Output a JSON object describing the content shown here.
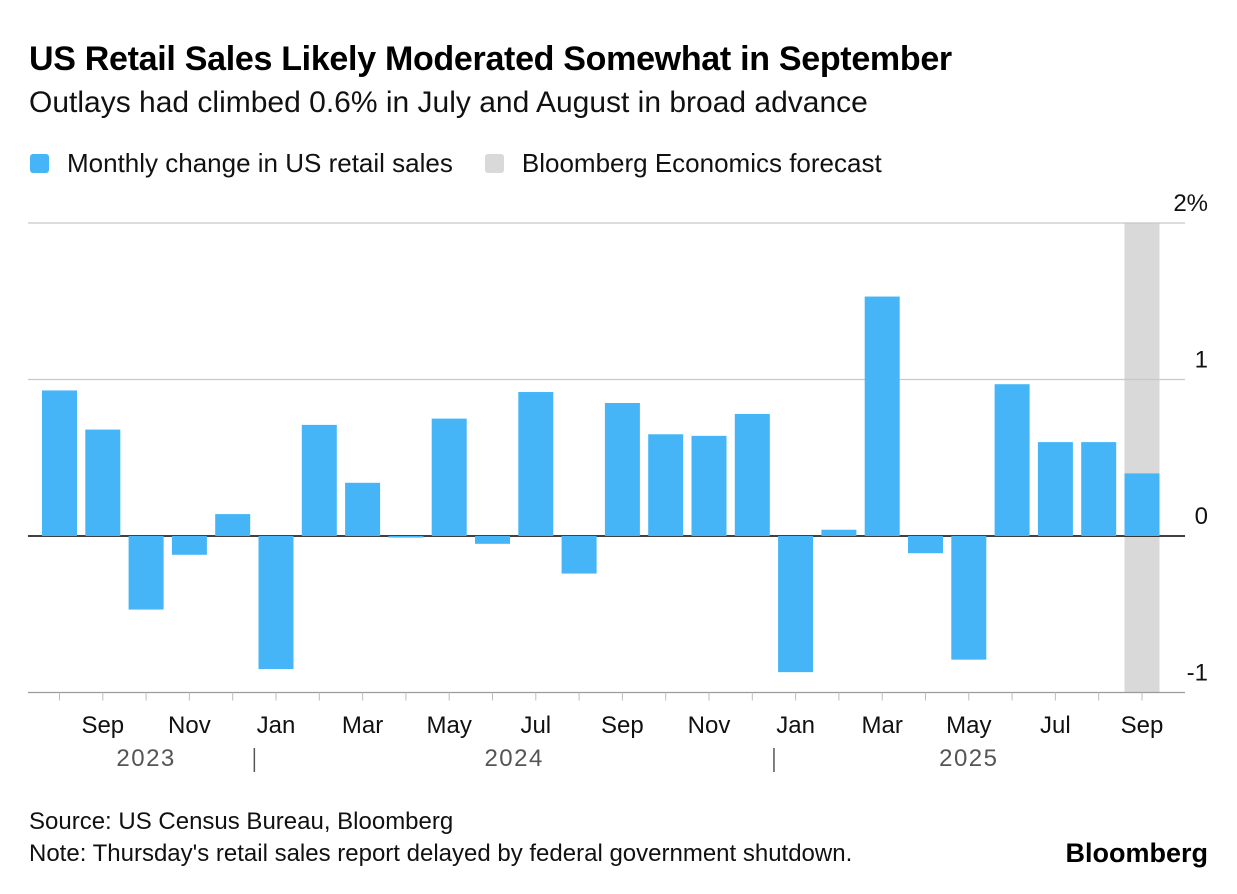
{
  "header": {
    "title": "US Retail Sales Likely Moderated Somewhat in September",
    "subtitle": "Outlays had climbed 0.6% in July and August in broad advance"
  },
  "legend": [
    {
      "label": "Monthly change in US retail sales",
      "color": "#45b5f7"
    },
    {
      "label": "Bloomberg Economics forecast",
      "color": "#d9d9d9"
    }
  ],
  "footer": {
    "source": "Source: US Census Bureau, Bloomberg",
    "note": "Note: Thursday's retail sales report delayed by federal government shutdown.",
    "brand": "Bloomberg"
  },
  "chart_data": {
    "type": "bar",
    "categories": [
      "Aug 2023",
      "Sep 2023",
      "Oct 2023",
      "Nov 2023",
      "Dec 2023",
      "Jan 2024",
      "Feb 2024",
      "Mar 2024",
      "Apr 2024",
      "May 2024",
      "Jun 2024",
      "Jul 2024",
      "Aug 2024",
      "Sep 2024",
      "Oct 2024",
      "Nov 2024",
      "Dec 2024",
      "Jan 2025",
      "Feb 2025",
      "Mar 2025",
      "Apr 2025",
      "May 2025",
      "Jun 2025",
      "Jul 2025",
      "Aug 2025",
      "Sep 2025"
    ],
    "values": [
      0.93,
      0.68,
      -0.47,
      -0.12,
      0.14,
      -0.85,
      0.71,
      0.34,
      -0.01,
      0.75,
      -0.05,
      0.92,
      -0.24,
      0.85,
      0.65,
      0.64,
      0.78,
      -0.87,
      0.04,
      1.53,
      -0.11,
      -0.79,
      0.97,
      0.6,
      0.6,
      0.4
    ],
    "forecast_index": 25,
    "ylim": [
      -1,
      2
    ],
    "y_ticks": [
      {
        "value": 2,
        "label": "2%"
      },
      {
        "value": 1,
        "label": "1"
      },
      {
        "value": 0,
        "label": "0"
      },
      {
        "value": -1,
        "label": "-1"
      }
    ],
    "x_tick_labels": [
      {
        "index": 1,
        "label": "Sep"
      },
      {
        "index": 3,
        "label": "Nov"
      },
      {
        "index": 5,
        "label": "Jan"
      },
      {
        "index": 7,
        "label": "Mar"
      },
      {
        "index": 9,
        "label": "May"
      },
      {
        "index": 11,
        "label": "Jul"
      },
      {
        "index": 13,
        "label": "Sep"
      },
      {
        "index": 15,
        "label": "Nov"
      },
      {
        "index": 17,
        "label": "Jan"
      },
      {
        "index": 19,
        "label": "Mar"
      },
      {
        "index": 21,
        "label": "May"
      },
      {
        "index": 23,
        "label": "Jul"
      },
      {
        "index": 25,
        "label": "Sep"
      }
    ],
    "years": [
      {
        "label": "2023",
        "start": 0,
        "end": 4
      },
      {
        "label": "2024",
        "start": 5,
        "end": 16
      },
      {
        "label": "2025",
        "start": 17,
        "end": 25
      }
    ],
    "year_separators": [
      4.5,
      16.5
    ],
    "bar_color": "#45b5f7",
    "forecast_color": "#d9d9d9",
    "title": "US Retail Sales Likely Moderated Somewhat in September",
    "xlabel": "",
    "ylabel": "",
    "grid": true
  }
}
